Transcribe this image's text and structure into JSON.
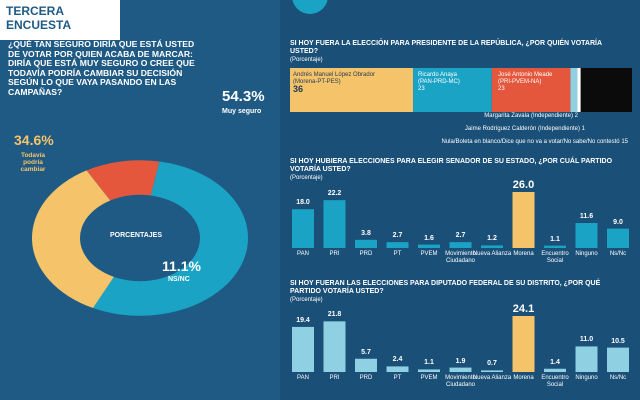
{
  "header": {
    "tag": "TERCERA ENCUESTA"
  },
  "question1": {
    "text": "¿QUÉ TAN SEGURO DIRÍA QUE ESTÁ USTED DE VOTAR POR QUIEN ACABA DE MARCAR: DIRÍA QUE ESTÁ MUY SEGURO O CREE QUE TODAVÍA PODRÍA CAMBIAR SU DECISIÓN SEGÚN LO QUE VAYA PASANDO EN LAS CAMPAÑAS?",
    "center_label": "PORCENTAJES"
  },
  "chart_data": [
    {
      "type": "pie",
      "categories": [
        "Muy seguro",
        "Todavía podría cambiar",
        "NS/NC"
      ],
      "values": [
        54.3,
        34.6,
        11.1
      ],
      "value_labels": [
        "54.3%",
        "34.6%",
        "11.1%"
      ],
      "colors": [
        "#1ba3c6",
        "#f5c36a",
        "#e4573d"
      ]
    },
    {
      "type": "bar",
      "title": "SI HOY FUERA LA ELECCIÓN PARA PRESIDENTE DE LA REPÚBLICA, ¿POR QUIÉN VOTARÍA USTED?",
      "subtitle": "(Porcentaje)",
      "stacked": true,
      "series": [
        {
          "name": "Andrés Manuel López Obrador",
          "party": "(Morena-PT-PES)",
          "value": 36,
          "color": "#f5c36a",
          "label": "36"
        },
        {
          "name": "Ricardo Anaya",
          "party": "(PAN-PRD-MC)",
          "value": 23,
          "color": "#1ba3c6",
          "label": "23"
        },
        {
          "name": "José Antonio Meade",
          "party": "(PRI-PVEM-NA)",
          "value": 23,
          "color": "#e4573d",
          "label": "23"
        },
        {
          "name": "Margarita Zavala (Independiente)",
          "value": 2,
          "color": "#8fd0e3",
          "label": "2"
        },
        {
          "name": "Jaime Rodríguez Calderón (Independiente)",
          "value": 1,
          "color": "#ffffff",
          "label": "1"
        },
        {
          "name": "Nula/Boleta en blanco/Dice que no va a votar/No sabe/No contestó",
          "value": 15,
          "color": "#0b0b0b",
          "label": "15"
        }
      ]
    },
    {
      "type": "bar",
      "title": "SI HOY HUBIERA ELECCIONES PARA ELEGIR SENADOR DE SU ESTADO, ¿POR CUÁL PARTIDO VOTARÍA USTED?",
      "subtitle": "(Porcentaje)",
      "categories": [
        "PAN",
        "PRI",
        "PRD",
        "PT",
        "PVEM",
        "Movimiento Ciudadano",
        "Nueva Alianza",
        "Morena",
        "Encuentro Social",
        "Ninguno",
        "Ns/Nc"
      ],
      "values": [
        18.0,
        22.2,
        3.8,
        2.7,
        1.6,
        2.7,
        1.2,
        26.0,
        1.1,
        11.6,
        9.0
      ],
      "value_labels": [
        "18.0",
        "22.2",
        "3.8",
        "2.7",
        "1.6",
        "2.7",
        "1.2",
        "26.0",
        "1.1",
        "11.6",
        "9.0"
      ],
      "highlight": "Morena",
      "colors": {
        "default": "#1ba3c6",
        "highlight": "#f5c36a"
      }
    },
    {
      "type": "bar",
      "title": "SI HOY FUERAN LAS ELECCIONES PARA DIPUTADO FEDERAL DE SU DISTRITO, ¿POR QUÉ PARTIDO VOTARÍA USTED?",
      "subtitle": "(Porcentaje)",
      "categories": [
        "PAN",
        "PRI",
        "PRD",
        "PT",
        "PVEM",
        "Movimiento Ciudadano",
        "Nueva Alianza",
        "Morena",
        "Encuentro Social",
        "Ninguno",
        "Ns/Nc"
      ],
      "values": [
        19.4,
        21.8,
        5.7,
        2.4,
        1.1,
        1.9,
        0.7,
        24.1,
        1.4,
        11.0,
        10.5
      ],
      "value_labels": [
        "19.4",
        "21.8",
        "5.7",
        "2.4",
        "1.1",
        "1.9",
        "0.7",
        "24.1",
        "1.4",
        "11.0",
        "10.5"
      ],
      "highlight": "Morena",
      "colors": {
        "default": "#8fd0e3",
        "highlight": "#f5c36a"
      }
    }
  ]
}
